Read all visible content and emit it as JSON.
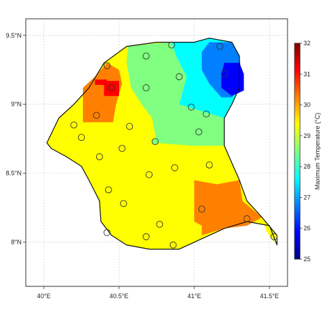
{
  "map": {
    "x_axis": {
      "range": [
        39.88,
        41.62
      ],
      "ticks": [
        {
          "value": 40.0,
          "label": "40°E"
        },
        {
          "value": 40.5,
          "label": "40.5°E"
        },
        {
          "value": 41.0,
          "label": "41°E"
        },
        {
          "value": 41.5,
          "label": "41.5°E"
        }
      ]
    },
    "y_axis": {
      "range": [
        7.68,
        9.62
      ],
      "ticks": [
        {
          "value": 8.0,
          "label": "8°N"
        },
        {
          "value": 8.5,
          "label": "8.5°N"
        },
        {
          "value": 9.0,
          "label": "9°N"
        },
        {
          "value": 9.5,
          "label": "9.5°N"
        }
      ]
    },
    "grid": true,
    "colorbar": {
      "title": "Maximum Temperature (°C)",
      "min": 25,
      "max": 32,
      "ticks": [
        {
          "value": 25,
          "label": "25"
        },
        {
          "value": 26,
          "label": "26"
        },
        {
          "value": 27,
          "label": "27"
        },
        {
          "value": 28,
          "label": "28"
        },
        {
          "value": 29,
          "label": "29"
        },
        {
          "value": 30,
          "label": "30"
        },
        {
          "value": 31,
          "label": "31"
        },
        {
          "value": 32,
          "label": "32"
        }
      ],
      "colors": [
        "#00007f",
        "#0000ff",
        "#0080ff",
        "#00ffff",
        "#80ff80",
        "#ffff00",
        "#ff8000",
        "#ff0000",
        "#7f0000"
      ]
    },
    "zones": [
      {
        "name": "base",
        "temp": 29.5,
        "color": "#ffff00",
        "poly": [
          [
            40.02,
            8.72
          ],
          [
            40.1,
            8.9
          ],
          [
            40.2,
            9.0
          ],
          [
            40.3,
            9.12
          ],
          [
            40.4,
            9.3
          ],
          [
            40.55,
            9.42
          ],
          [
            40.75,
            9.45
          ],
          [
            41.0,
            9.45
          ],
          [
            41.1,
            9.48
          ],
          [
            41.25,
            9.45
          ],
          [
            41.3,
            9.35
          ],
          [
            41.3,
            9.12
          ],
          [
            41.25,
            9.0
          ],
          [
            41.2,
            8.9
          ],
          [
            41.2,
            8.7
          ],
          [
            41.3,
            8.45
          ],
          [
            41.35,
            8.3
          ],
          [
            41.45,
            8.18
          ],
          [
            41.55,
            8.05
          ],
          [
            41.5,
            8.12
          ],
          [
            41.35,
            8.15
          ],
          [
            41.2,
            8.1
          ],
          [
            41.0,
            8.0
          ],
          [
            40.9,
            7.95
          ],
          [
            40.7,
            7.95
          ],
          [
            40.55,
            7.98
          ],
          [
            40.45,
            8.05
          ],
          [
            40.38,
            8.15
          ],
          [
            40.37,
            8.3
          ],
          [
            40.3,
            8.45
          ],
          [
            40.25,
            8.55
          ],
          [
            40.15,
            8.62
          ],
          [
            40.05,
            8.68
          ]
        ]
      },
      {
        "name": "orange-nw",
        "temp": 30.5,
        "color": "#ff8000",
        "poly": [
          [
            40.26,
            8.87
          ],
          [
            40.26,
            9.12
          ],
          [
            40.34,
            9.2
          ],
          [
            40.42,
            9.3
          ],
          [
            40.5,
            9.25
          ],
          [
            40.52,
            9.15
          ],
          [
            40.48,
            9.0
          ],
          [
            40.46,
            8.87
          ]
        ]
      },
      {
        "name": "red-nw",
        "temp": 31.5,
        "color": "#ff0000",
        "poly": [
          [
            40.34,
            9.14
          ],
          [
            40.34,
            9.18
          ],
          [
            40.42,
            9.18
          ],
          [
            40.42,
            9.17
          ],
          [
            40.5,
            9.17
          ],
          [
            40.5,
            9.06
          ],
          [
            40.4,
            9.06
          ],
          [
            40.4,
            9.14
          ]
        ]
      },
      {
        "name": "green",
        "temp": 28.5,
        "color": "#80ff80",
        "poly": [
          [
            40.56,
            9.42
          ],
          [
            40.72,
            9.44
          ],
          [
            40.85,
            9.45
          ],
          [
            40.88,
            9.35
          ],
          [
            40.95,
            9.2
          ],
          [
            40.9,
            9.0
          ],
          [
            41.05,
            8.95
          ],
          [
            41.2,
            8.9
          ],
          [
            41.2,
            8.7
          ],
          [
            40.98,
            8.7
          ],
          [
            40.75,
            8.72
          ],
          [
            40.72,
            8.9
          ],
          [
            40.65,
            9.0
          ],
          [
            40.58,
            9.12
          ],
          [
            40.55,
            9.3
          ]
        ]
      },
      {
        "name": "cyan",
        "temp": 27.5,
        "color": "#00ffff",
        "poly": [
          [
            40.85,
            9.45
          ],
          [
            41.0,
            9.45
          ],
          [
            41.1,
            9.48
          ],
          [
            41.25,
            9.45
          ],
          [
            41.3,
            9.35
          ],
          [
            41.3,
            9.12
          ],
          [
            41.25,
            9.0
          ],
          [
            41.2,
            8.9
          ],
          [
            41.05,
            8.95
          ],
          [
            40.9,
            9.0
          ],
          [
            40.95,
            9.2
          ],
          [
            40.88,
            9.35
          ]
        ]
      },
      {
        "name": "blue",
        "temp": 26.5,
        "color": "#0080ff",
        "poly": [
          [
            41.05,
            9.38
          ],
          [
            41.1,
            9.45
          ],
          [
            41.25,
            9.45
          ],
          [
            41.3,
            9.35
          ],
          [
            41.32,
            9.15
          ],
          [
            41.25,
            9.05
          ],
          [
            41.18,
            9.05
          ],
          [
            41.1,
            9.15
          ],
          [
            41.05,
            9.25
          ]
        ]
      },
      {
        "name": "dark-blue",
        "temp": 25.5,
        "color": "#0000ff",
        "poly": [
          [
            41.2,
            9.3
          ],
          [
            41.3,
            9.3
          ],
          [
            41.33,
            9.22
          ],
          [
            41.33,
            9.1
          ],
          [
            41.25,
            9.06
          ],
          [
            41.18,
            9.12
          ],
          [
            41.18,
            9.22
          ]
        ]
      },
      {
        "name": "orange-se",
        "temp": 30.5,
        "color": "#ff8000",
        "poly": [
          [
            41.0,
            8.45
          ],
          [
            41.15,
            8.42
          ],
          [
            41.3,
            8.45
          ],
          [
            41.32,
            8.3
          ],
          [
            41.45,
            8.18
          ],
          [
            41.35,
            8.12
          ],
          [
            41.2,
            8.1
          ],
          [
            41.05,
            8.05
          ],
          [
            41.05,
            8.12
          ],
          [
            41.0,
            8.15
          ]
        ]
      },
      {
        "name": "yellow-se-tip",
        "temp": 29.5,
        "color": "#ffff00",
        "poly": [
          [
            41.45,
            8.18
          ],
          [
            41.55,
            8.05
          ],
          [
            41.53,
            8.0
          ],
          [
            41.48,
            8.08
          ]
        ]
      }
    ],
    "boundary": [
      [
        40.02,
        8.72
      ],
      [
        40.1,
        8.9
      ],
      [
        40.2,
        9.0
      ],
      [
        40.3,
        9.12
      ],
      [
        40.4,
        9.3
      ],
      [
        40.55,
        9.42
      ],
      [
        40.75,
        9.45
      ],
      [
        41.0,
        9.45
      ],
      [
        41.1,
        9.48
      ],
      [
        41.25,
        9.45
      ],
      [
        41.3,
        9.35
      ],
      [
        41.3,
        9.12
      ],
      [
        41.25,
        9.0
      ],
      [
        41.2,
        8.9
      ],
      [
        41.2,
        8.7
      ],
      [
        41.3,
        8.45
      ],
      [
        41.35,
        8.3
      ],
      [
        41.45,
        8.18
      ],
      [
        41.55,
        8.05
      ],
      [
        41.55,
        7.98
      ],
      [
        41.5,
        8.12
      ],
      [
        41.35,
        8.15
      ],
      [
        41.2,
        8.1
      ],
      [
        41.0,
        8.0
      ],
      [
        40.9,
        7.95
      ],
      [
        40.7,
        7.95
      ],
      [
        40.55,
        7.98
      ],
      [
        40.45,
        8.05
      ],
      [
        40.38,
        8.15
      ],
      [
        40.37,
        8.3
      ],
      [
        40.3,
        8.45
      ],
      [
        40.25,
        8.55
      ],
      [
        40.15,
        8.62
      ],
      [
        40.05,
        8.68
      ]
    ],
    "stations": [
      {
        "lon": 40.68,
        "lat": 9.35,
        "fill": "none"
      },
      {
        "lon": 40.85,
        "lat": 9.43,
        "fill": "none"
      },
      {
        "lon": 41.17,
        "lat": 9.42,
        "fill": "none"
      },
      {
        "lon": 40.42,
        "lat": 9.28,
        "fill": "none"
      },
      {
        "lon": 40.9,
        "lat": 9.2,
        "fill": "none"
      },
      {
        "lon": 41.2,
        "lat": 9.22,
        "fill": "none"
      },
      {
        "lon": 40.45,
        "lat": 9.12,
        "fill": "none"
      },
      {
        "lon": 40.68,
        "lat": 9.12,
        "fill": "none"
      },
      {
        "lon": 40.35,
        "lat": 8.92,
        "fill": "none"
      },
      {
        "lon": 40.98,
        "lat": 8.98,
        "fill": "none"
      },
      {
        "lon": 41.08,
        "lat": 8.93,
        "fill": "none"
      },
      {
        "lon": 40.2,
        "lat": 8.85,
        "fill": "none"
      },
      {
        "lon": 40.57,
        "lat": 8.84,
        "fill": "none"
      },
      {
        "lon": 41.03,
        "lat": 8.8,
        "fill": "none"
      },
      {
        "lon": 40.25,
        "lat": 8.76,
        "fill": "none"
      },
      {
        "lon": 40.74,
        "lat": 8.73,
        "fill": "#80ff80"
      },
      {
        "lon": 40.52,
        "lat": 8.68,
        "fill": "none"
      },
      {
        "lon": 40.37,
        "lat": 8.62,
        "fill": "none"
      },
      {
        "lon": 41.1,
        "lat": 8.56,
        "fill": "none"
      },
      {
        "lon": 40.87,
        "lat": 8.54,
        "fill": "none"
      },
      {
        "lon": 40.7,
        "lat": 8.49,
        "fill": "none"
      },
      {
        "lon": 40.43,
        "lat": 8.38,
        "fill": "none"
      },
      {
        "lon": 40.53,
        "lat": 8.28,
        "fill": "none"
      },
      {
        "lon": 41.05,
        "lat": 8.24,
        "fill": "none"
      },
      {
        "lon": 41.35,
        "lat": 8.17,
        "fill": "none"
      },
      {
        "lon": 40.77,
        "lat": 8.13,
        "fill": "none"
      },
      {
        "lon": 40.42,
        "lat": 8.07,
        "fill": "none"
      },
      {
        "lon": 40.68,
        "lat": 8.04,
        "fill": "none"
      },
      {
        "lon": 40.86,
        "lat": 7.98,
        "fill": "none"
      },
      {
        "lon": 41.53,
        "lat": 8.04,
        "fill": "none"
      }
    ]
  }
}
